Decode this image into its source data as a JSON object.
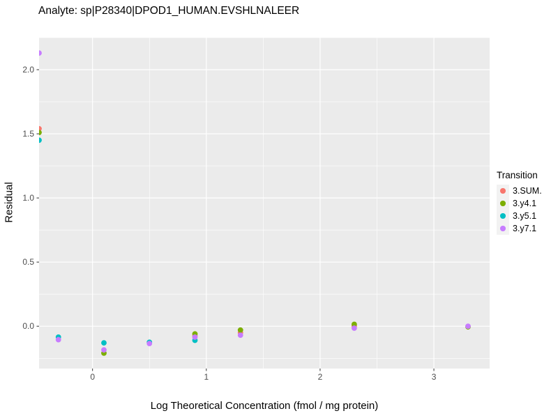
{
  "chart_data": {
    "type": "scatter",
    "title": "Analyte: sp|P28340|DPOD1_HUMAN.EVSHLNALEER",
    "xlabel": "Log Theoretical Concentration (fmol / mg protein)",
    "ylabel": "Residual",
    "xlim": [
      -0.47,
      3.49
    ],
    "ylim": [
      -0.33,
      2.25
    ],
    "x_ticks": [
      0,
      1,
      2,
      3
    ],
    "x_tick_labels": [
      "0",
      "1",
      "2",
      "3"
    ],
    "y_ticks": [
      0.0,
      0.5,
      1.0,
      1.5,
      2.0
    ],
    "y_tick_labels": [
      "0.0",
      "0.5",
      "1.0",
      "1.5",
      "2.0"
    ],
    "x_minor_gridlines": [
      0.5,
      1.5,
      2.5
    ],
    "y_minor_gridlines": [
      -0.25,
      0.25,
      0.75,
      1.25,
      1.75,
      2.25
    ],
    "grid": "white major and minor gridlines on gray panel",
    "legend": {
      "title": "Transition",
      "position": "right"
    },
    "series": [
      {
        "name": "3.SUM.",
        "color": "#F8766D",
        "points": [
          [
            -0.47,
            1.54
          ],
          [
            0.9,
            -0.075
          ],
          [
            1.3,
            -0.05
          ],
          [
            2.3,
            0.0
          ]
        ]
      },
      {
        "name": "3.y4.1",
        "color": "#7CAE00",
        "points": [
          [
            -0.47,
            1.51
          ],
          [
            0.1,
            -0.21
          ],
          [
            0.9,
            -0.06
          ],
          [
            1.3,
            -0.03
          ],
          [
            2.3,
            0.015
          ],
          [
            3.3,
            -0.005
          ]
        ]
      },
      {
        "name": "3.y5.1",
        "color": "#00BFC4",
        "points": [
          [
            -0.47,
            1.45
          ],
          [
            -0.3,
            -0.085
          ],
          [
            0.1,
            -0.13
          ],
          [
            0.5,
            -0.125
          ],
          [
            0.9,
            -0.11
          ]
        ]
      },
      {
        "name": "3.y7.1",
        "color": "#C77CFF",
        "points": [
          [
            -0.47,
            2.13
          ],
          [
            -0.3,
            -0.105
          ],
          [
            0.1,
            -0.185
          ],
          [
            0.5,
            -0.135
          ],
          [
            0.9,
            -0.085
          ],
          [
            1.3,
            -0.07
          ],
          [
            2.3,
            -0.015
          ],
          [
            3.3,
            0.0
          ]
        ]
      }
    ]
  },
  "colors": {
    "panel_background": "#EBEBEB",
    "major_gridline": "#FFFFFF",
    "minor_gridline": "#FFFFFF",
    "tick_mark": "#333333",
    "tick_label": "#4D4D4D",
    "legend_key_background": "#F2F2F2",
    "text": "#000000"
  }
}
